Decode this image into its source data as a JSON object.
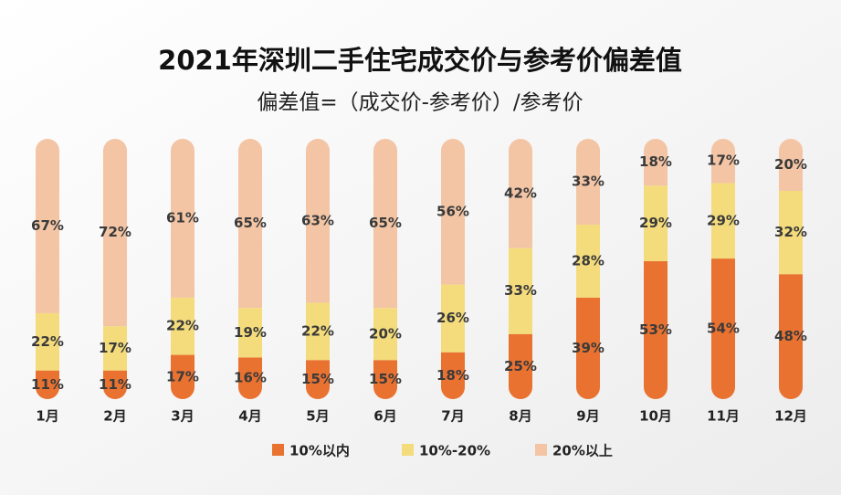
{
  "chart_data": {
    "type": "stacked_bar",
    "title": "2021年深圳二手住宅成交价与参考价偏差值",
    "subtitle": "偏差值=（成交价-参考价）/参考价",
    "categories": [
      "1月",
      "2月",
      "3月",
      "4月",
      "5月",
      "6月",
      "7月",
      "8月",
      "9月",
      "10月",
      "11月",
      "12月"
    ],
    "series": [
      {
        "name": "10%以内",
        "color": "#e97231",
        "values": [
          11,
          11,
          17,
          16,
          15,
          15,
          18,
          25,
          39,
          53,
          54,
          48
        ],
        "value_labels": [
          "11%",
          "11%",
          "17%",
          "16%",
          "15%",
          "15%",
          "18%",
          "25%",
          "39%",
          "53%",
          "54%",
          "48%"
        ]
      },
      {
        "name": "10%-20%",
        "color": "#f4dc7c",
        "values": [
          22,
          17,
          22,
          19,
          22,
          20,
          26,
          33,
          28,
          29,
          29,
          32
        ],
        "value_labels": [
          "22%",
          "17%",
          "22%",
          "19%",
          "22%",
          "20%",
          "26%",
          "33%",
          "28%",
          "29%",
          "29%",
          "32%"
        ]
      },
      {
        "name": "20%以上",
        "color": "#f3c5a5",
        "values": [
          67,
          72,
          61,
          65,
          63,
          65,
          56,
          42,
          33,
          18,
          17,
          20
        ],
        "value_labels": [
          "67%",
          "72%",
          "61%",
          "65%",
          "63%",
          "65%",
          "56%",
          "42%",
          "33%",
          "18%",
          "17%",
          "20%"
        ]
      }
    ],
    "ylim": [
      0,
      100
    ]
  }
}
